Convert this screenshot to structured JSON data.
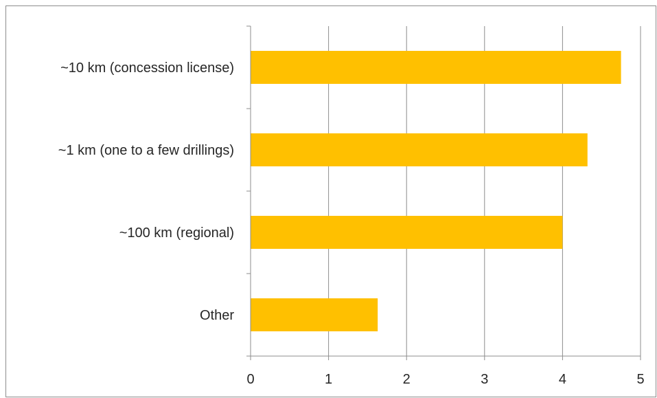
{
  "chart_data": {
    "type": "bar",
    "orientation": "horizontal",
    "title": "",
    "xlabel": "",
    "ylabel": "",
    "categories": [
      "~10 km (concession license)",
      "~1 km (one to a few drillings)",
      "~100 km (regional)",
      "Other"
    ],
    "values": [
      4.75,
      4.32,
      4.0,
      1.63
    ],
    "xlim": [
      0,
      5
    ],
    "xticks": [
      "0",
      "1",
      "2",
      "3",
      "4",
      "5"
    ],
    "grid": true,
    "legend": "none",
    "bar_color": "#FFC000"
  }
}
